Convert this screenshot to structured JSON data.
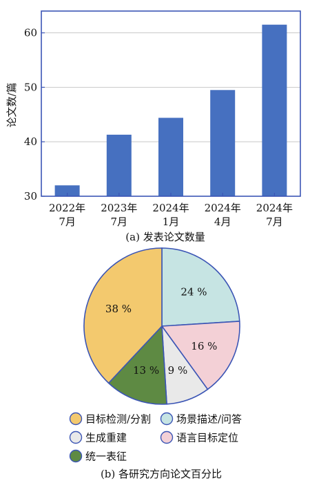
{
  "chart_data": [
    {
      "type": "bar",
      "ylabel": "论文数/篇",
      "caption": "(a) 发表论文数量",
      "categories": [
        [
          "2022年",
          "7月"
        ],
        [
          "2023年",
          "7月"
        ],
        [
          "2024年",
          "1月"
        ],
        [
          "2024年",
          "4月"
        ],
        [
          "2024年",
          "7月"
        ]
      ],
      "values": [
        32,
        41.3,
        44.4,
        49.5,
        61.5
      ],
      "ylim": [
        30,
        64
      ],
      "yticks": [
        30,
        40,
        50,
        60
      ],
      "grid": true,
      "bar_color": "#4670c0"
    },
    {
      "type": "pie",
      "caption": "(b) 各研究方向论文百分比",
      "slices": [
        {
          "label": "场景描述/问答",
          "value": 24,
          "text": "24 %",
          "color": "#c6e4e3"
        },
        {
          "label": "语言目标定位",
          "value": 16,
          "text": "16 %",
          "color": "#f3d0d6"
        },
        {
          "label": "生成重建",
          "value": 9,
          "text": "9 %",
          "color": "#e9e9e9"
        },
        {
          "label": "统一表征",
          "value": 13,
          "text": "13 %",
          "color": "#5e8a43"
        },
        {
          "label": "目标检测/分割",
          "value": 38,
          "text": "38 %",
          "color": "#f3c96e"
        }
      ],
      "legend_order": [
        "目标检测/分割",
        "场景描述/问答",
        "生成重建",
        "语言目标定位",
        "统一表征"
      ],
      "legend_placement": "bottom"
    }
  ]
}
